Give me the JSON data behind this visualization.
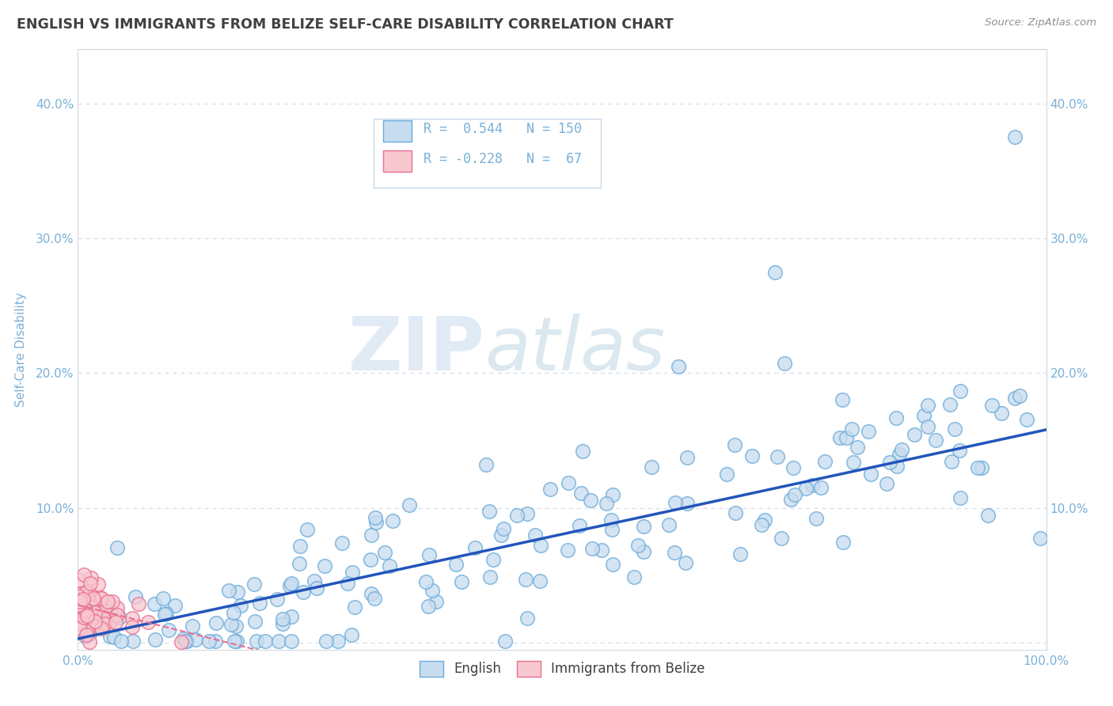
{
  "title": "ENGLISH VS IMMIGRANTS FROM BELIZE SELF-CARE DISABILITY CORRELATION CHART",
  "source": "Source: ZipAtlas.com",
  "ylabel": "Self-Care Disability",
  "xlim": [
    0.0,
    1.0
  ],
  "ylim": [
    -0.005,
    0.44
  ],
  "xticks": [
    0.0,
    0.1,
    0.2,
    0.3,
    0.4,
    0.5,
    0.6,
    0.7,
    0.8,
    0.9,
    1.0
  ],
  "xticklabels": [
    "0.0%",
    "",
    "",
    "",
    "",
    "",
    "",
    "",
    "",
    "",
    "100.0%"
  ],
  "yticks": [
    0.0,
    0.1,
    0.2,
    0.3,
    0.4
  ],
  "yticklabels": [
    "",
    "10.0%",
    "20.0%",
    "30.0%",
    "40.0%"
  ],
  "blue_face": "#c8dcf0",
  "blue_edge": "#6aaad8",
  "pink_face": "#f8c8d0",
  "pink_edge": "#e87090",
  "trend_blue": "#2255bb",
  "trend_pink": "#e87090",
  "R_blue": 0.544,
  "N_blue": 150,
  "R_pink": -0.228,
  "N_pink": 67,
  "watermark_color": "#d8e8f4",
  "bg": "#ffffff",
  "grid_color": "#d8dce8",
  "title_color": "#404040",
  "title_fontsize": 12.5,
  "axis_color": "#7ab0d8",
  "tick_color": "#7ab0d8",
  "legend_label_blue": "English",
  "legend_label_pink": "Immigrants from Belize",
  "a_blue": 0.155,
  "b_blue": 0.003,
  "a_pink": -0.18,
  "b_pink": 0.028
}
